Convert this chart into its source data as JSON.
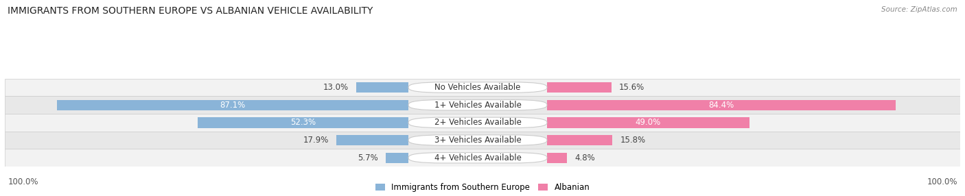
{
  "title": "IMMIGRANTS FROM SOUTHERN EUROPE VS ALBANIAN VEHICLE AVAILABILITY",
  "source": "Source: ZipAtlas.com",
  "categories": [
    "No Vehicles Available",
    "1+ Vehicles Available",
    "2+ Vehicles Available",
    "3+ Vehicles Available",
    "4+ Vehicles Available"
  ],
  "southern_europe_values": [
    13.0,
    87.1,
    52.3,
    17.9,
    5.7
  ],
  "albanian_values": [
    15.6,
    84.4,
    49.0,
    15.8,
    4.8
  ],
  "southern_europe_color": "#8ab4d8",
  "albanian_color": "#f080a8",
  "row_bg_even": "#f2f2f2",
  "row_bg_odd": "#e8e8e8",
  "label_color_dark": "#444444",
  "label_color_white": "#ffffff",
  "max_value": 100.0,
  "title_fontsize": 10,
  "source_fontsize": 7.5,
  "label_fontsize": 8.5,
  "category_fontsize": 8.5,
  "legend_fontsize": 8.5,
  "footer_fontsize": 8.5
}
